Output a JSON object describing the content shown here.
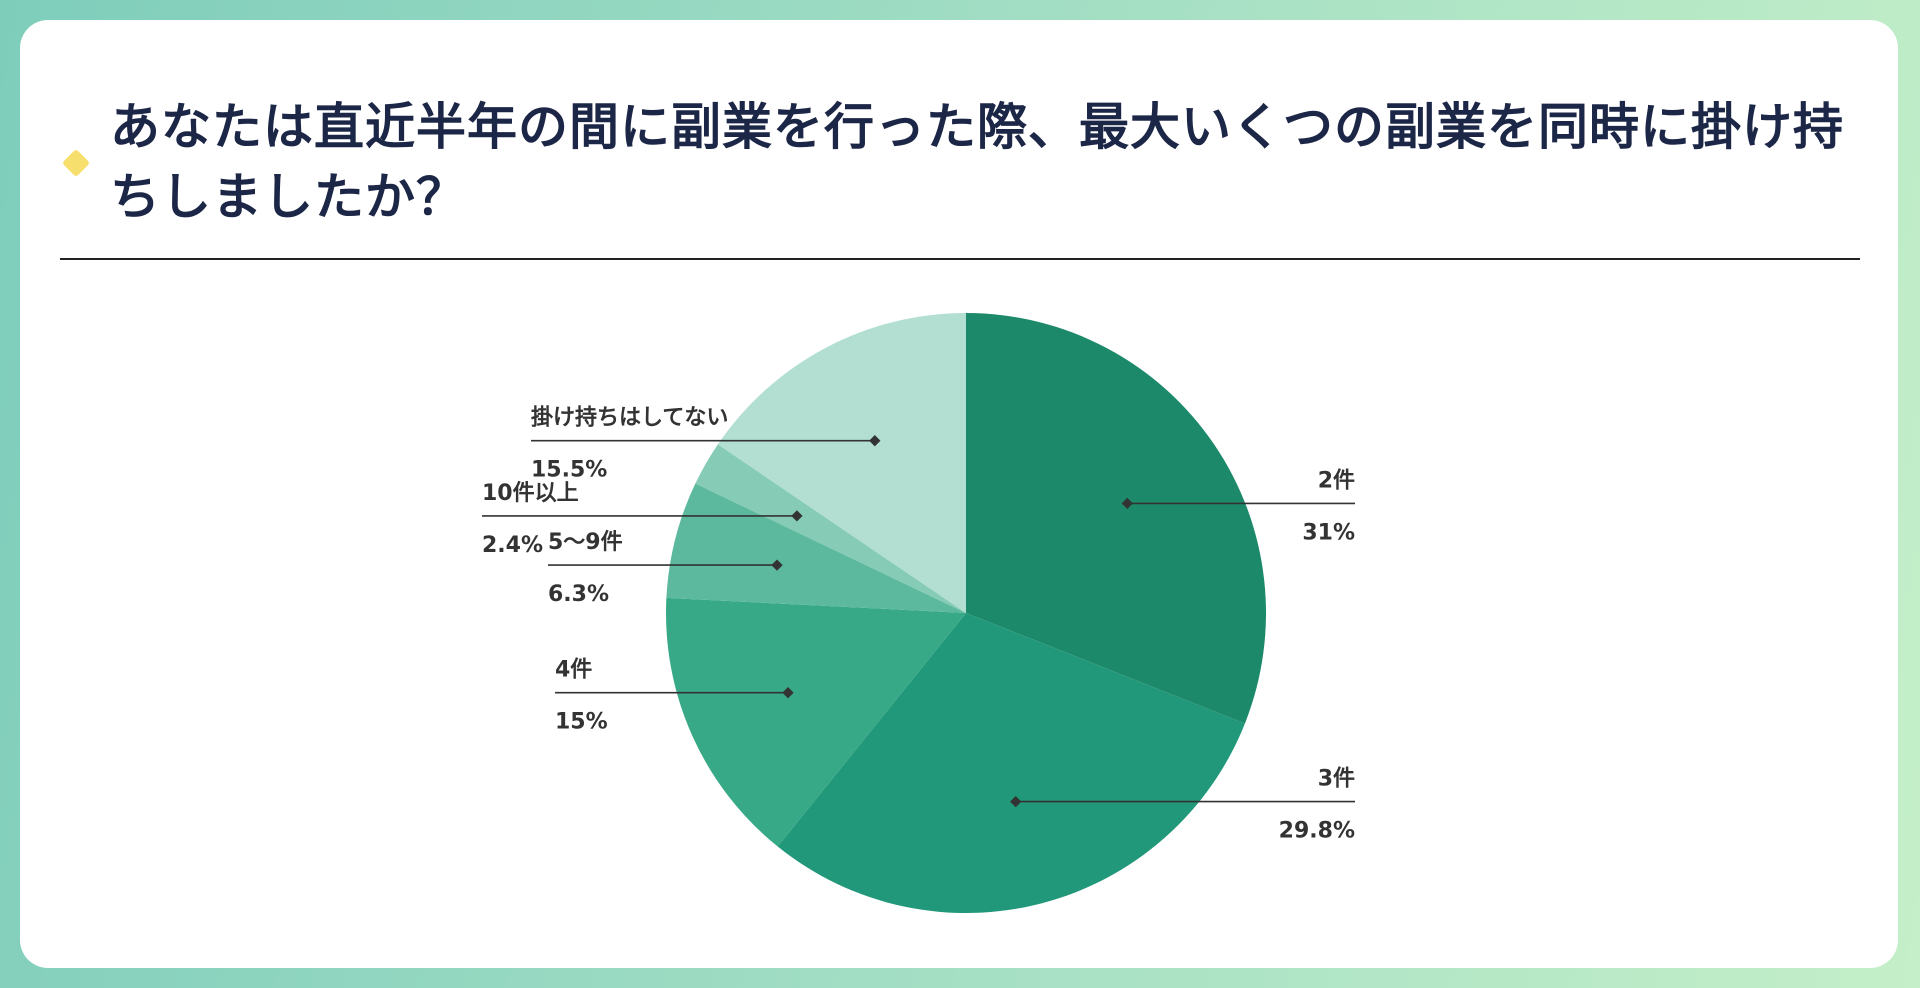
{
  "title": "あなたは直近半年の間に副業を行った際、最大いくつの副業を同時に掛け持ちしましたか？",
  "colors": {
    "background_start": "#7ecdbb",
    "background_end": "#c4efc8",
    "title": "#1c2646",
    "accent_diamond": "#f7df6e",
    "leader": "#333333"
  },
  "chart_data": {
    "type": "pie",
    "title": "あなたは直近半年の間に副業を行った際、最大いくつの副業を同時に掛け持ちしましたか？",
    "start_angle": "12 o'clock",
    "direction": "clockwise",
    "slices": [
      {
        "label": "2件",
        "value": 31,
        "value_label": "31%",
        "color": "#1c8a6a",
        "label_side": "right"
      },
      {
        "label": "3件",
        "value": 29.8,
        "value_label": "29.8%",
        "color": "#22987a",
        "label_side": "right"
      },
      {
        "label": "4件",
        "value": 15,
        "value_label": "15%",
        "color": "#37a987",
        "label_side": "left"
      },
      {
        "label": "5〜9件",
        "value": 6.3,
        "value_label": "6.3%",
        "color": "#5cb99d",
        "label_side": "left"
      },
      {
        "label": "10件以上",
        "value": 2.4,
        "value_label": "2.4%",
        "color": "#86cbb5",
        "label_side": "left"
      },
      {
        "label": "掛け持ちはしてない",
        "value": 15.5,
        "value_label": "15.5%",
        "color": "#b2dfd2",
        "label_side": "left"
      }
    ]
  }
}
